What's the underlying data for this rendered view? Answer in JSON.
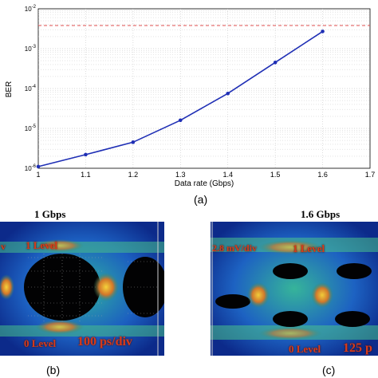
{
  "chart_data": {
    "type": "line",
    "ylabel": "BER",
    "xlabel": "Data rate (Gbps)",
    "xlim": [
      1,
      1.7
    ],
    "ylim": [
      1e-06,
      0.01
    ],
    "y_scale": "log",
    "grid": true,
    "x_ticks": [
      "1",
      "1.1",
      "1.2",
      "1.3",
      "1.4",
      "1.5",
      "1.6",
      "1.7"
    ],
    "y_ticks": [
      {
        "base": "10",
        "exp": "-6"
      },
      {
        "base": "10",
        "exp": "-5"
      },
      {
        "base": "10",
        "exp": "-4"
      },
      {
        "base": "10",
        "exp": "-3"
      },
      {
        "base": "10",
        "exp": "-2"
      }
    ],
    "series": [
      {
        "color": "#1f2fb5",
        "x": [
          1.0,
          1.1,
          1.2,
          1.3,
          1.4,
          1.5,
          1.6
        ],
        "y": [
          1.1e-06,
          2.2e-06,
          4.5e-06,
          1.6e-05,
          7.5e-05,
          0.00045,
          0.0027
        ]
      }
    ],
    "threshold": {
      "y": 0.0038,
      "color": "#e05050"
    }
  },
  "captions": {
    "a": "(a)",
    "b": "(b)",
    "c": "(c)"
  },
  "eye_b": {
    "title": "1 Gbps",
    "level1": "1 Level",
    "level0": "0 Level",
    "scale": "100 ps/div",
    "vdiv": "v"
  },
  "eye_c": {
    "title": "1.6 Gbps",
    "level1": "1 Level",
    "level0": "0 Level",
    "scale": "125 p",
    "vdiv": "2.8 mV/div"
  }
}
